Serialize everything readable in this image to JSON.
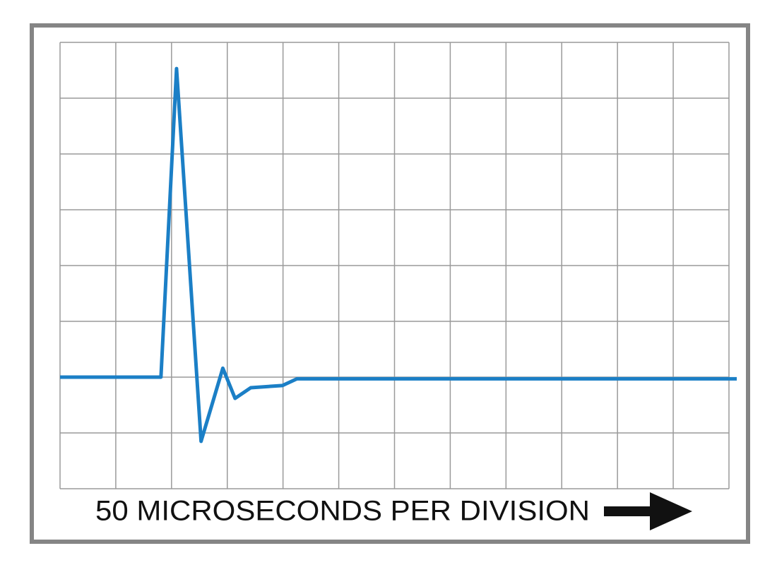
{
  "chart_data": {
    "type": "line",
    "xlabel": "50 MICROSECONDS PER DIVISION",
    "x": [
      0,
      1.81,
      2.09,
      2.53,
      2.92,
      3.14,
      3.42,
      3.99,
      4.25,
      12.14
    ],
    "series": [
      {
        "color": "#1b7fc6",
        "values": [
          2.0,
          2.0,
          7.53,
          0.85,
          2.16,
          1.62,
          1.81,
          1.85,
          1.97,
          1.97
        ]
      }
    ],
    "xlim": [
      0,
      12
    ],
    "ylim": [
      0,
      8
    ],
    "xticks": [
      0,
      1,
      2,
      3,
      4,
      5,
      6,
      7,
      8,
      9,
      10,
      11,
      12
    ],
    "yticks": [
      0,
      1,
      2,
      3,
      4,
      5,
      6,
      7,
      8
    ],
    "grid": true
  }
}
